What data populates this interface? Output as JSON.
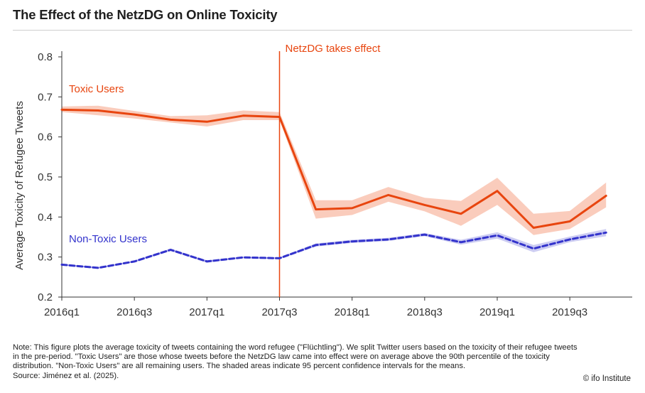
{
  "title": "The Effect of the NetzDG on Online Toxicity",
  "note": "Note: This figure plots the average toxicity of tweets containing the word refugee (\"Flüchtling\"). We split Twitter users based on the toxicity of their refugee tweets in the pre-period. \"Toxic Users\" are those whose tweets before the NetzDG law came into effect were on average above the 90th percentile of the toxicity distribution. \"Non-Toxic Users\" are all remaining users. The shaded areas indicate 95 percent confidence intervals for the means.",
  "source": "Source: Jiménez et al. (2025).",
  "credit": "© ifo Institute",
  "colors": {
    "toxic": "#e8450f",
    "toxic_ci": "#f9c3b0",
    "nontoxic": "#3333cc",
    "nontoxic_ci": "#c3c3f0",
    "event_line": "#e8450f"
  },
  "chart_data": {
    "type": "line",
    "title": "The Effect of the NetzDG on Online Toxicity",
    "xlabel": "",
    "ylabel": "Average Toxicity of Refugee Tweets",
    "ylim": [
      0.2,
      0.8
    ],
    "yticks": [
      "0.2",
      "0.3",
      "0.4",
      "0.5",
      "0.6",
      "0.7",
      "0.8"
    ],
    "x": [
      "2016q1",
      "2016q2",
      "2016q3",
      "2016q4",
      "2017q1",
      "2017q2",
      "2017q3",
      "2017q4",
      "2018q1",
      "2018q2",
      "2018q3",
      "2018q4",
      "2019q1",
      "2019q2",
      "2019q3",
      "2019q4"
    ],
    "xticks": [
      "2016q1",
      "2016q3",
      "2017q1",
      "2017q3",
      "2018q1",
      "2018q3",
      "2019q1",
      "2019q3"
    ],
    "grid": false,
    "legend": "none",
    "annotations": [
      {
        "text": "NetzDG takes effect",
        "x": "2017q3"
      }
    ],
    "series": [
      {
        "name": "Toxic Users",
        "style": "solid",
        "values": [
          0.668,
          0.666,
          0.656,
          0.643,
          0.638,
          0.653,
          0.65,
          0.419,
          0.422,
          0.455,
          0.43,
          0.408,
          0.465,
          0.373,
          0.389,
          0.453
        ],
        "ci_low": [
          0.662,
          0.654,
          0.646,
          0.636,
          0.626,
          0.642,
          0.642,
          0.396,
          0.405,
          0.438,
          0.414,
          0.378,
          0.43,
          0.355,
          0.37,
          0.424
        ],
        "ci_high": [
          0.676,
          0.678,
          0.665,
          0.652,
          0.654,
          0.666,
          0.662,
          0.442,
          0.442,
          0.475,
          0.448,
          0.44,
          0.498,
          0.408,
          0.415,
          0.486
        ]
      },
      {
        "name": "Non-Toxic Users",
        "style": "dashed",
        "values": [
          0.281,
          0.273,
          0.289,
          0.318,
          0.289,
          0.299,
          0.297,
          0.33,
          0.339,
          0.344,
          0.356,
          0.337,
          0.354,
          0.321,
          0.344,
          0.361
        ],
        "ci_low": [
          0.279,
          0.271,
          0.287,
          0.315,
          0.286,
          0.297,
          0.295,
          0.326,
          0.335,
          0.34,
          0.352,
          0.331,
          0.346,
          0.312,
          0.337,
          0.352
        ],
        "ci_high": [
          0.283,
          0.275,
          0.291,
          0.321,
          0.292,
          0.301,
          0.299,
          0.334,
          0.343,
          0.348,
          0.36,
          0.343,
          0.362,
          0.33,
          0.351,
          0.37
        ]
      }
    ]
  }
}
